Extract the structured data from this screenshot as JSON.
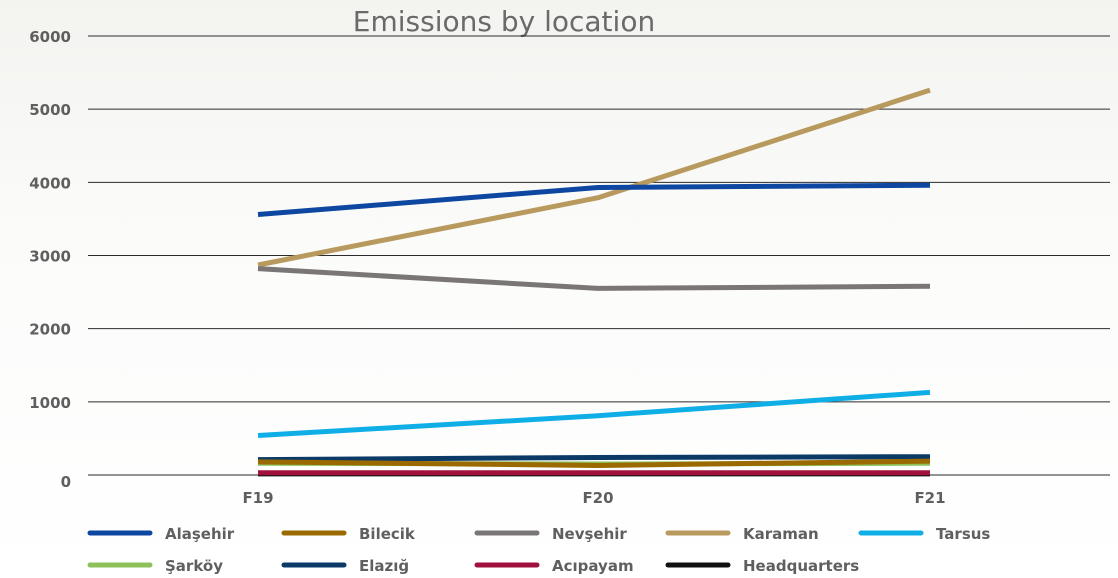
{
  "chart_data": {
    "type": "line",
    "title": "Emissions by location",
    "xlabel": "",
    "ylabel": "",
    "categories": [
      "F19",
      "F20",
      "F21"
    ],
    "ylim": [
      0,
      6000
    ],
    "yticks": [
      "0",
      "1000",
      "2000",
      "3000",
      "4000",
      "5000",
      "6000"
    ],
    "grid": true,
    "legend_position": "bottom",
    "series": [
      {
        "name": "Alaşehir",
        "color": "#0d47a1",
        "values": [
          3560,
          3930,
          3960
        ]
      },
      {
        "name": "Bilecik",
        "color": "#9a6a00",
        "values": [
          180,
          130,
          190
        ]
      },
      {
        "name": "Nevşehir",
        "color": "#7a7676",
        "values": [
          2820,
          2550,
          2580
        ]
      },
      {
        "name": "Karaman",
        "color": "#b89a5e",
        "values": [
          2870,
          3790,
          5260
        ]
      },
      {
        "name": "Tarsus",
        "color": "#10aee6",
        "values": [
          540,
          810,
          1130
        ]
      },
      {
        "name": "Şarköy",
        "color": "#8dc05a",
        "values": [
          160,
          150,
          160
        ]
      },
      {
        "name": "Elazığ",
        "color": "#0b3a66",
        "values": [
          210,
          240,
          250
        ]
      },
      {
        "name": "Acıpayam",
        "color": "#a0123d",
        "values": [
          30,
          30,
          30
        ]
      },
      {
        "name": "Headquarters",
        "color": "#111111",
        "values": [
          15,
          15,
          15
        ]
      }
    ]
  }
}
